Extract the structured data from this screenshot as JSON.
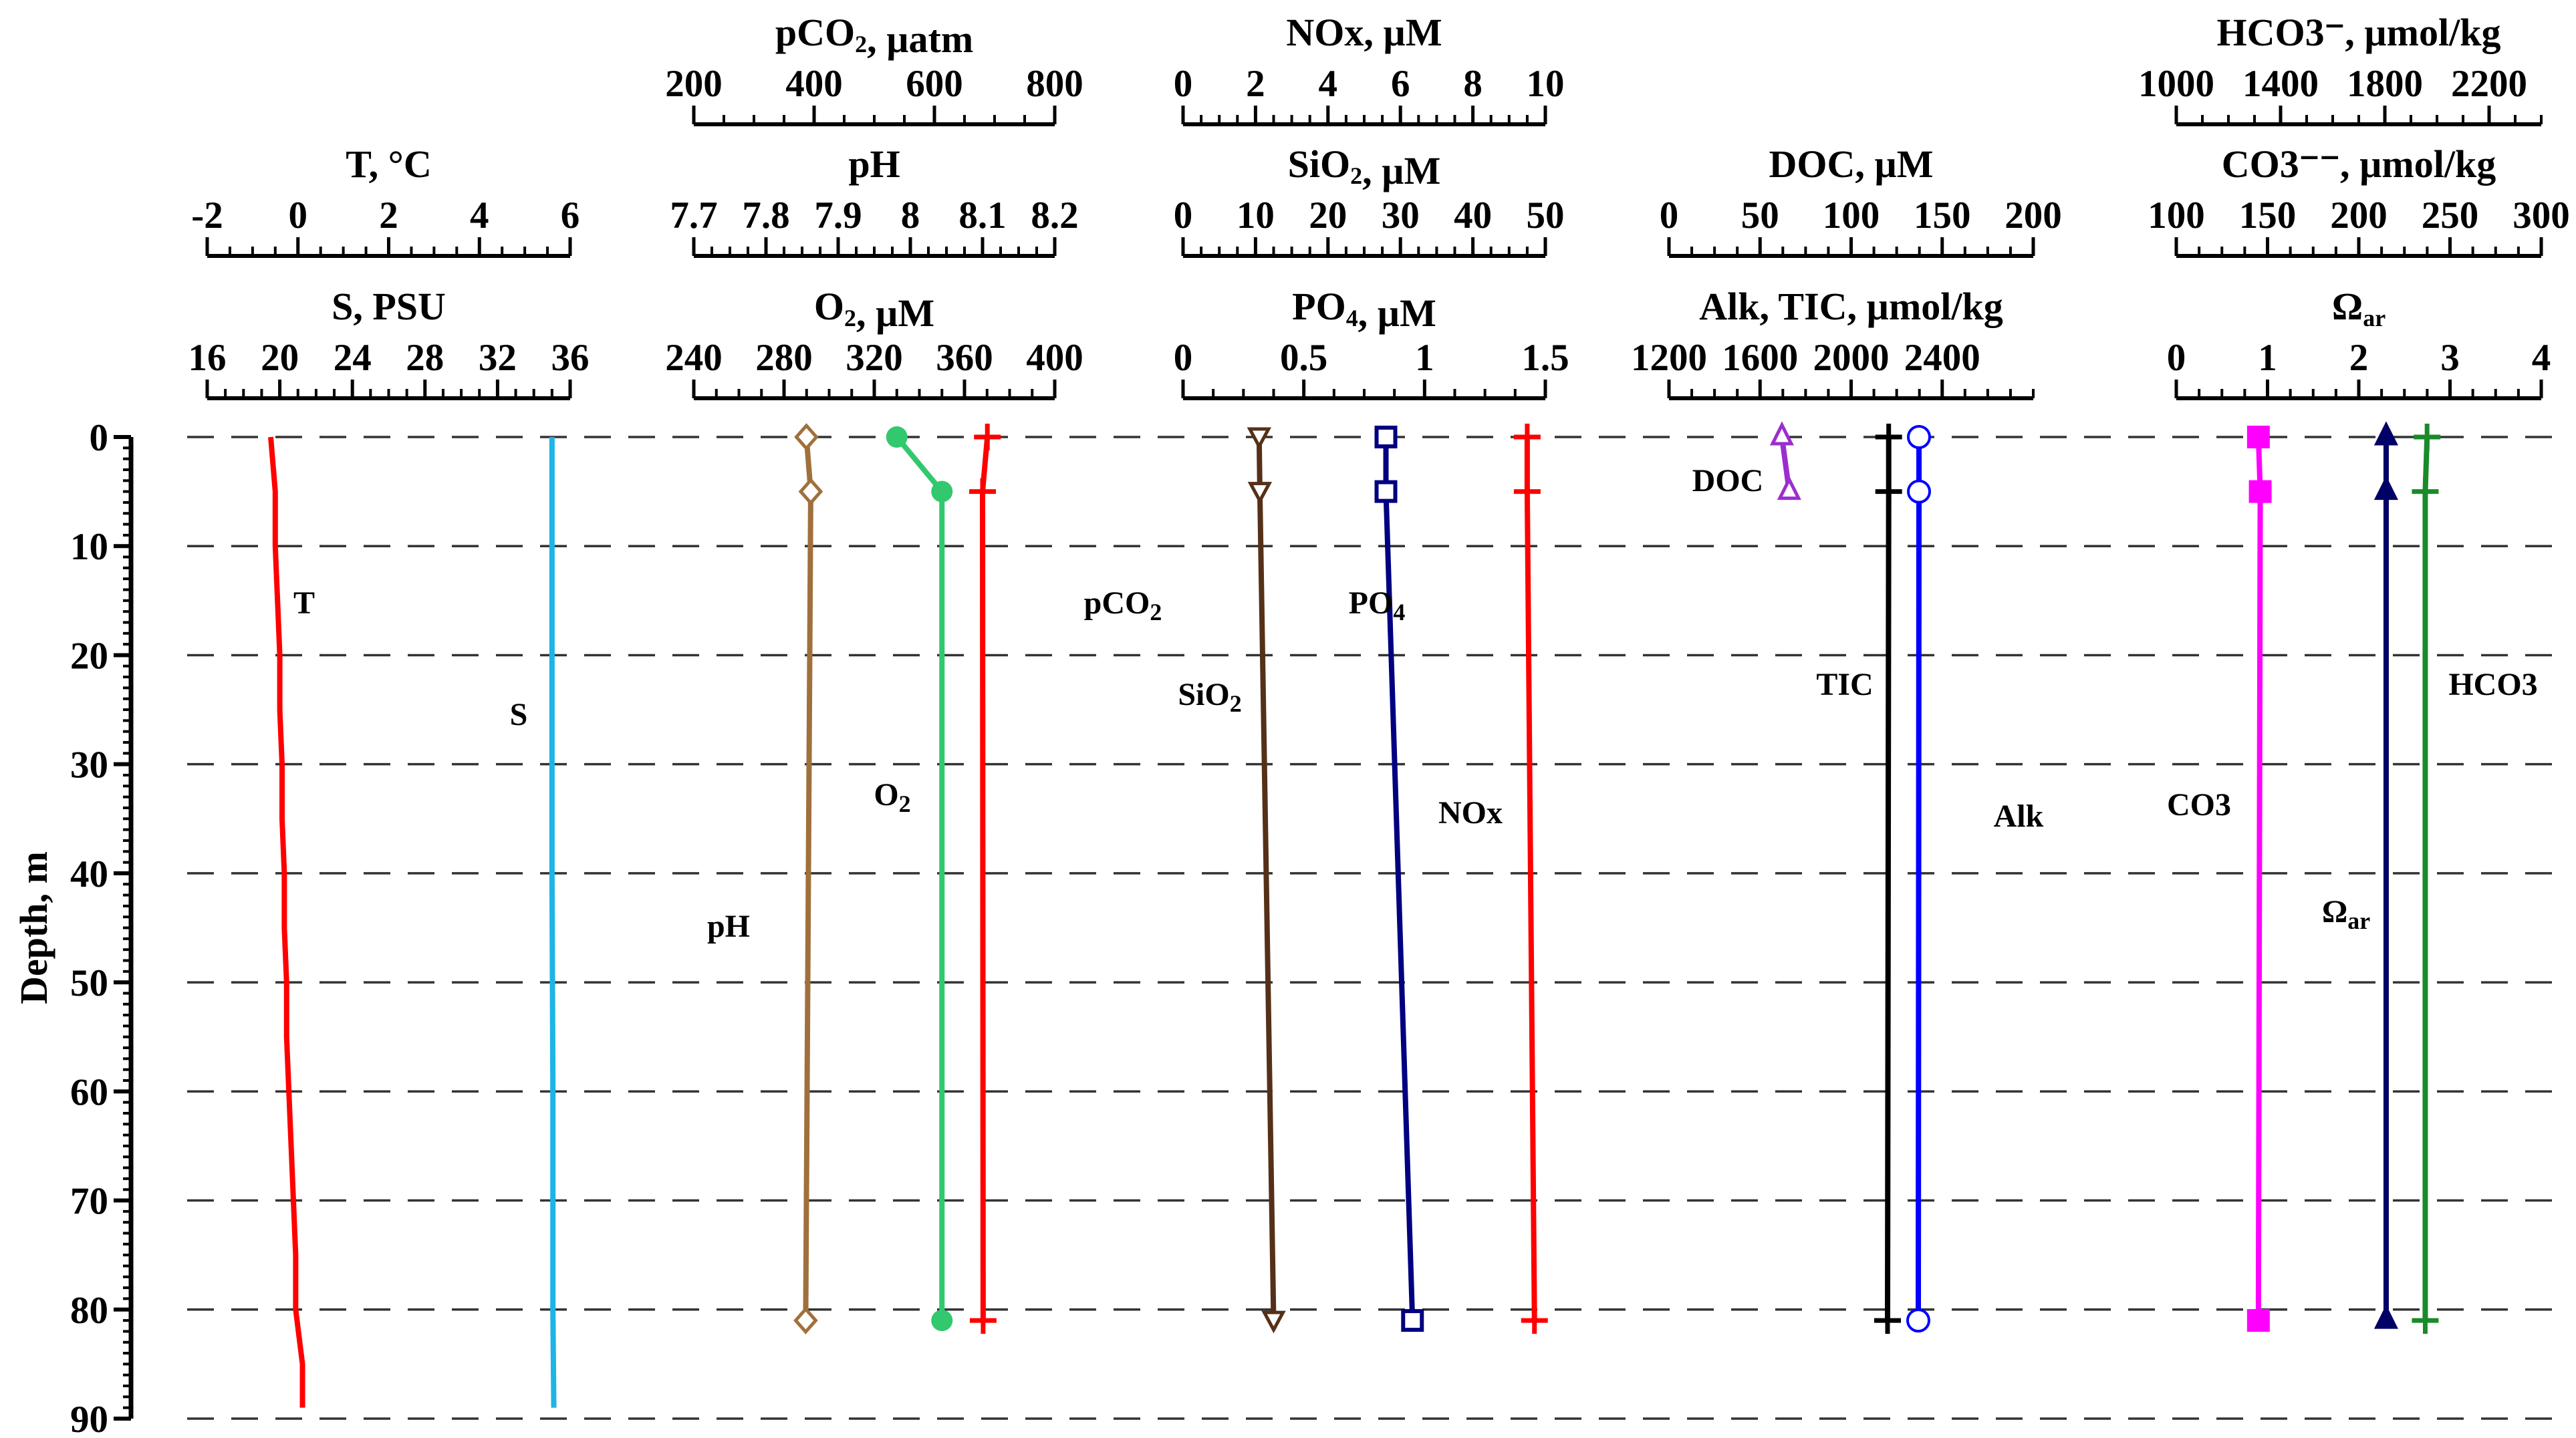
{
  "chart_data": {
    "type": "line",
    "title": "",
    "ylabel": "Depth, m",
    "ylim": [
      0,
      90
    ],
    "y_ticks": [
      "0",
      "10",
      "20",
      "30",
      "40",
      "50",
      "60",
      "70",
      "80",
      "90"
    ],
    "grid": "horizontal dashed at 0-90 m",
    "panels": [
      {
        "axes": [
          {
            "label": "T, °C",
            "min": -2,
            "max": 6,
            "ticks": [
              "-2",
              "0",
              "2",
              "4",
              "6"
            ]
          },
          {
            "label": "S, PSU",
            "min": 16,
            "max": 36,
            "ticks": [
              "16",
              "20",
              "24",
              "28",
              "32",
              "36"
            ]
          }
        ],
        "series": [
          {
            "name": "T",
            "label": "T",
            "color": "#ff0000",
            "axis": 0,
            "marker": "none",
            "depth": [
              0,
              5,
              10,
              15,
              20,
              25,
              30,
              35,
              40,
              45,
              50,
              55,
              60,
              65,
              70,
              75,
              80,
              85,
              89
            ],
            "values": [
              -0.6,
              -0.5,
              -0.5,
              -0.45,
              -0.4,
              -0.4,
              -0.35,
              -0.35,
              -0.3,
              -0.3,
              -0.25,
              -0.25,
              -0.2,
              -0.15,
              -0.1,
              -0.05,
              -0.05,
              0.1,
              0.1
            ]
          },
          {
            "name": "S",
            "label": "S",
            "color": "#1eb4e6",
            "axis": 1,
            "marker": "none",
            "depth": [
              0,
              20,
              40,
              60,
              80,
              89
            ],
            "values": [
              35.0,
              35.0,
              35.0,
              35.05,
              35.05,
              35.1
            ]
          }
        ]
      },
      {
        "axes": [
          {
            "label": "pCO2, µatm",
            "min": 200,
            "max": 800,
            "ticks": [
              "200",
              "400",
              "600",
              "800"
            ]
          },
          {
            "label": "pH",
            "min": 7.7,
            "max": 8.2,
            "ticks": [
              "7.7",
              "7.8",
              "7.9",
              "8",
              "8.1",
              "8.2"
            ]
          },
          {
            "label": "O2, µM",
            "min": 240,
            "max": 400,
            "ticks": [
              "240",
              "280",
              "320",
              "360",
              "400"
            ]
          }
        ],
        "series": [
          {
            "name": "pH",
            "label": "pH",
            "color": "#a0703c",
            "axis": 1,
            "marker": "diamond",
            "depth": [
              0,
              5,
              81
            ],
            "values": [
              7.856,
              7.862,
              7.855
            ]
          },
          {
            "name": "O2",
            "label": "O2",
            "color": "#32c86e",
            "axis": 2,
            "marker": "circle",
            "depth": [
              0,
              5,
              81
            ],
            "values": [
              330,
              350,
              350
            ]
          },
          {
            "name": "pCO2",
            "label": "pCO2",
            "color": "#ff0000",
            "axis": 0,
            "marker": "plus",
            "depth": [
              0,
              5,
              81
            ],
            "values": [
              688,
              680,
              681
            ]
          }
        ]
      },
      {
        "axes": [
          {
            "label": "NOx, µM",
            "min": 0,
            "max": 10,
            "ticks": [
              "0",
              "2",
              "4",
              "6",
              "8",
              "10"
            ]
          },
          {
            "label": "SiO2, µM",
            "min": 0,
            "max": 50,
            "ticks": [
              "0",
              "10",
              "20",
              "30",
              "40",
              "50"
            ]
          },
          {
            "label": "PO4, µM",
            "min": 0,
            "max": 1.5,
            "ticks": [
              "0",
              "0.5",
              "1",
              "1.5"
            ]
          }
        ],
        "series": [
          {
            "name": "SiO2",
            "label": "SiO2",
            "color": "#553018",
            "axis": 1,
            "marker": "triangle-down",
            "depth": [
              0,
              5,
              81
            ],
            "values": [
              10.5,
              10.6,
              12.5
            ]
          },
          {
            "name": "PO4",
            "label": "PO4",
            "color": "#000080",
            "axis": 2,
            "marker": "square",
            "depth": [
              0,
              5,
              81
            ],
            "values": [
              0.84,
              0.84,
              0.95
            ]
          },
          {
            "name": "NOx",
            "label": "NOx",
            "color": "#ff0000",
            "axis": 0,
            "marker": "plus",
            "depth": [
              0,
              5,
              81
            ],
            "values": [
              9.5,
              9.5,
              9.7
            ]
          }
        ]
      },
      {
        "axes": [
          {
            "label": "DOC, µM",
            "min": 0,
            "max": 200,
            "ticks": [
              "0",
              "50",
              "100",
              "150",
              "200"
            ]
          },
          {
            "label": "Alk, TIC, µmol/kg",
            "min": 1200,
            "max": 2800,
            "ticks": [
              "1200",
              "1600",
              "2000",
              "2400"
            ]
          }
        ],
        "series": [
          {
            "name": "DOC",
            "label": "DOC",
            "color": "#9b2ecf",
            "axis": 0,
            "marker": "triangle",
            "depth": [
              0,
              5
            ],
            "values": [
              62,
              66
            ]
          },
          {
            "name": "TIC",
            "label": "TIC",
            "color": "#000000",
            "axis": 1,
            "marker": "plus",
            "depth": [
              0,
              5,
              81
            ],
            "values": [
              2165,
              2165,
              2160
            ]
          },
          {
            "name": "Alk",
            "label": "Alk",
            "color": "#0000ff",
            "axis": 1,
            "marker": "open-circle",
            "depth": [
              0,
              5,
              81
            ],
            "values": [
              2298,
              2298,
              2295
            ]
          }
        ]
      },
      {
        "axes": [
          {
            "label": "HCO3⁻, µmol/kg",
            "min": 1000,
            "max": 2400,
            "ticks": [
              "1000",
              "1400",
              "1800",
              "2200"
            ]
          },
          {
            "label": "CO3⁻⁻, µmol/kg",
            "min": 100,
            "max": 300,
            "ticks": [
              "100",
              "150",
              "200",
              "250",
              "300"
            ]
          },
          {
            "label": "Ωar",
            "min": 0,
            "max": 4,
            "ticks": [
              "0",
              "1",
              "2",
              "3",
              "4"
            ]
          }
        ],
        "series": [
          {
            "name": "CO3",
            "label": "CO3",
            "color": "#ff00ff",
            "axis": 1,
            "marker": "square",
            "depth": [
              0,
              5,
              81
            ],
            "values": [
              145,
              146,
              145
            ]
          },
          {
            "name": "Ωar",
            "label": "Ωar",
            "color": "#000066",
            "axis": 2,
            "marker": "triangle",
            "depth": [
              0,
              5,
              81
            ],
            "values": [
              2.3,
              2.3,
              2.3
            ]
          },
          {
            "name": "HCO3",
            "label": "HCO3",
            "color": "#1a8a2a",
            "axis": 0,
            "marker": "plus",
            "depth": [
              0,
              5,
              81
            ],
            "values": [
              1962,
              1955,
              1955
            ]
          }
        ]
      }
    ]
  }
}
